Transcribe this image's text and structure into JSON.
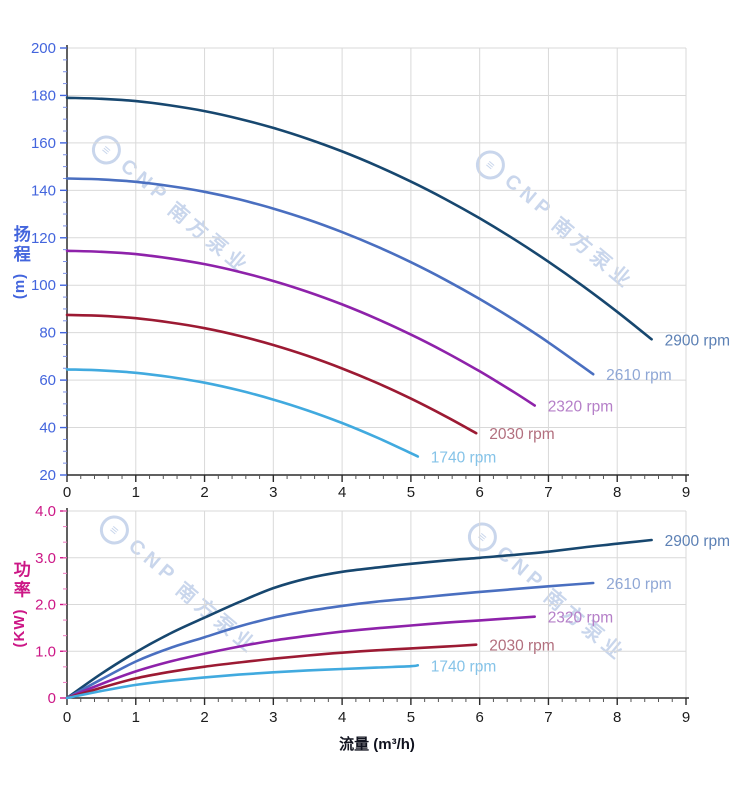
{
  "figure": {
    "x_axis_title": "流量 (m³/h)",
    "watermark": {
      "logo": "≡",
      "brand": "CNP",
      "company": "南方泵业"
    }
  },
  "chart_data": [
    {
      "id": "head-curve-chart",
      "type": "line",
      "title": "",
      "xlabel": "流量 (m³/h)",
      "ylabel": "扬程 (m)",
      "ylabel_cjk": "扬程",
      "ylabel_unit": "(m)",
      "xlim": [
        0,
        9
      ],
      "ylim": [
        20,
        200
      ],
      "grid": true,
      "legend_position": "end-of-line-labels",
      "x_tick_labels": [
        "0",
        "1",
        "2",
        "3",
        "4",
        "5",
        "6",
        "7",
        "8",
        "9"
      ],
      "y_tick_labels": [
        "20",
        "40",
        "60",
        "80",
        "100",
        "120",
        "140",
        "160",
        "180",
        "200"
      ],
      "x_major_step": 1,
      "x_minor_step": 0.2,
      "y_major_step": 20,
      "y_minor_step": 5,
      "axis_color": "#4365dd",
      "minor_tick_color": "#7b90e8",
      "x_tick_color": "#2b2b2b",
      "series": [
        {
          "name": "2900 rpm",
          "color": "#17476f",
          "label_color": "#5d81b5",
          "points": [
            [
              0,
              179
            ],
            [
              0.5,
              178.6
            ],
            [
              1,
              177.6
            ],
            [
              1.5,
              175.8
            ],
            [
              2,
              173.4
            ],
            [
              2.5,
              170.2
            ],
            [
              3,
              166.3
            ],
            [
              3.5,
              161.7
            ],
            [
              4,
              156.4
            ],
            [
              4.5,
              150.4
            ],
            [
              5,
              143.7
            ],
            [
              5.5,
              136.3
            ],
            [
              6,
              128.2
            ],
            [
              6.5,
              119.4
            ],
            [
              7,
              109.9
            ],
            [
              7.5,
              99.7
            ],
            [
              8,
              88.8
            ],
            [
              8.5,
              77.2
            ]
          ]
        },
        {
          "name": "2610 rpm",
          "color": "#4a6fc0",
          "label_color": "#8fa7d5",
          "points": [
            [
              0,
              145
            ],
            [
              0.5,
              144.6
            ],
            [
              1,
              143.6
            ],
            [
              1.5,
              141.8
            ],
            [
              2,
              139.4
            ],
            [
              2.5,
              136.2
            ],
            [
              3,
              132.3
            ],
            [
              3.5,
              127.7
            ],
            [
              4,
              122.4
            ],
            [
              4.5,
              116.4
            ],
            [
              5,
              109.7
            ],
            [
              5.5,
              102.3
            ],
            [
              6,
              94.2
            ],
            [
              6.5,
              85.4
            ],
            [
              7,
              75.9
            ],
            [
              7.65,
              62.5
            ]
          ]
        },
        {
          "name": "2320 rpm",
          "color": "#8e22aa",
          "label_color": "#b57fc8",
          "points": [
            [
              0,
              114.5
            ],
            [
              0.5,
              114.1
            ],
            [
              1,
              113.1
            ],
            [
              1.5,
              111.3
            ],
            [
              2,
              108.9
            ],
            [
              2.5,
              105.7
            ],
            [
              3,
              101.8
            ],
            [
              3.5,
              97.2
            ],
            [
              4,
              91.9
            ],
            [
              4.5,
              85.9
            ],
            [
              5,
              79.2
            ],
            [
              5.5,
              71.8
            ],
            [
              6,
              63.7
            ],
            [
              6.5,
              54.9
            ],
            [
              6.8,
              49.3
            ]
          ]
        },
        {
          "name": "2030 rpm",
          "color": "#9c1a33",
          "label_color": "#b26f7e",
          "points": [
            [
              0,
              87.5
            ],
            [
              0.5,
              87.1
            ],
            [
              1,
              86.1
            ],
            [
              1.5,
              84.3
            ],
            [
              2,
              81.9
            ],
            [
              2.5,
              78.7
            ],
            [
              3,
              74.8
            ],
            [
              3.5,
              70.2
            ],
            [
              4,
              64.9
            ],
            [
              4.5,
              58.9
            ],
            [
              5,
              52.2
            ],
            [
              5.5,
              44.8
            ],
            [
              5.95,
              37.6
            ]
          ]
        },
        {
          "name": "1740 rpm",
          "color": "#41aadf",
          "label_color": "#85c3e8",
          "points": [
            [
              0,
              64.5
            ],
            [
              0.5,
              64.1
            ],
            [
              1,
              63.1
            ],
            [
              1.5,
              61.3
            ],
            [
              2,
              58.9
            ],
            [
              2.5,
              55.7
            ],
            [
              3,
              51.8
            ],
            [
              3.5,
              47.2
            ],
            [
              4,
              41.9
            ],
            [
              4.5,
              35.9
            ],
            [
              5,
              29.2
            ],
            [
              5.1,
              27.8
            ]
          ]
        }
      ]
    },
    {
      "id": "power-curve-chart",
      "type": "line",
      "title": "",
      "xlabel": "流量 (m³/h)",
      "ylabel": "功率 (KW)",
      "ylabel_cjk": "功率",
      "ylabel_unit": "(KW)",
      "xlim": [
        0,
        9
      ],
      "ylim": [
        0,
        4
      ],
      "grid": true,
      "legend_position": "end-of-line-labels",
      "x_tick_labels": [
        "0",
        "1",
        "2",
        "3",
        "4",
        "5",
        "6",
        "7",
        "8",
        "9"
      ],
      "y_tick_labels": [
        "0",
        "1.0",
        "2.0",
        "3.0",
        "4.0"
      ],
      "x_major_step": 1,
      "x_minor_step": 0.2,
      "y_major_step": 1,
      "y_minor_step": 0.3333,
      "axis_color": "#cc1786",
      "minor_tick_color": "#ef79c0",
      "x_tick_color": "#2b2b2b",
      "series": [
        {
          "name": "2900 rpm",
          "color": "#17476f",
          "label_color": "#5d81b5",
          "points": [
            [
              0,
              0
            ],
            [
              0.5,
              0.52
            ],
            [
              1,
              0.98
            ],
            [
              1.5,
              1.38
            ],
            [
              2,
              1.72
            ],
            [
              2.5,
              2.05
            ],
            [
              3,
              2.35
            ],
            [
              3.5,
              2.56
            ],
            [
              4,
              2.7
            ],
            [
              4.5,
              2.79
            ],
            [
              5,
              2.87
            ],
            [
              5.5,
              2.94
            ],
            [
              6,
              3.0
            ],
            [
              6.5,
              3.06
            ],
            [
              7,
              3.13
            ],
            [
              7.5,
              3.22
            ],
            [
              8,
              3.3
            ],
            [
              8.5,
              3.38
            ]
          ]
        },
        {
          "name": "2610 rpm",
          "color": "#4a6fc0",
          "label_color": "#8fa7d5",
          "points": [
            [
              0,
              0
            ],
            [
              0.5,
              0.4
            ],
            [
              1,
              0.78
            ],
            [
              1.5,
              1.07
            ],
            [
              2,
              1.3
            ],
            [
              2.5,
              1.53
            ],
            [
              3,
              1.72
            ],
            [
              3.5,
              1.86
            ],
            [
              4,
              1.97
            ],
            [
              4.5,
              2.06
            ],
            [
              5,
              2.13
            ],
            [
              5.5,
              2.2
            ],
            [
              6,
              2.27
            ],
            [
              6.5,
              2.33
            ],
            [
              7,
              2.39
            ],
            [
              7.65,
              2.46
            ]
          ]
        },
        {
          "name": "2320 rpm",
          "color": "#8e22aa",
          "label_color": "#b57fc8",
          "points": [
            [
              0,
              0
            ],
            [
              0.5,
              0.3
            ],
            [
              1,
              0.57
            ],
            [
              1.5,
              0.78
            ],
            [
              2,
              0.95
            ],
            [
              2.5,
              1.1
            ],
            [
              3,
              1.23
            ],
            [
              3.5,
              1.33
            ],
            [
              4,
              1.42
            ],
            [
              4.5,
              1.49
            ],
            [
              5,
              1.55
            ],
            [
              5.5,
              1.61
            ],
            [
              6,
              1.66
            ],
            [
              6.8,
              1.74
            ]
          ]
        },
        {
          "name": "2030 rpm",
          "color": "#9c1a33",
          "label_color": "#b26f7e",
          "points": [
            [
              0,
              0
            ],
            [
              0.5,
              0.22
            ],
            [
              1,
              0.42
            ],
            [
              1.5,
              0.56
            ],
            [
              2,
              0.67
            ],
            [
              2.5,
              0.76
            ],
            [
              3,
              0.84
            ],
            [
              3.5,
              0.91
            ],
            [
              4,
              0.97
            ],
            [
              4.5,
              1.02
            ],
            [
              5,
              1.06
            ],
            [
              5.5,
              1.1
            ],
            [
              5.95,
              1.14
            ]
          ]
        },
        {
          "name": "1740 rpm",
          "color": "#41aadf",
          "label_color": "#85c3e8",
          "points": [
            [
              0,
              0
            ],
            [
              0.5,
              0.15
            ],
            [
              1,
              0.28
            ],
            [
              1.5,
              0.37
            ],
            [
              2,
              0.44
            ],
            [
              2.5,
              0.5
            ],
            [
              3,
              0.55
            ],
            [
              3.5,
              0.59
            ],
            [
              4,
              0.62
            ],
            [
              4.5,
              0.65
            ],
            [
              5,
              0.68
            ],
            [
              5.1,
              0.7
            ]
          ]
        }
      ]
    }
  ]
}
